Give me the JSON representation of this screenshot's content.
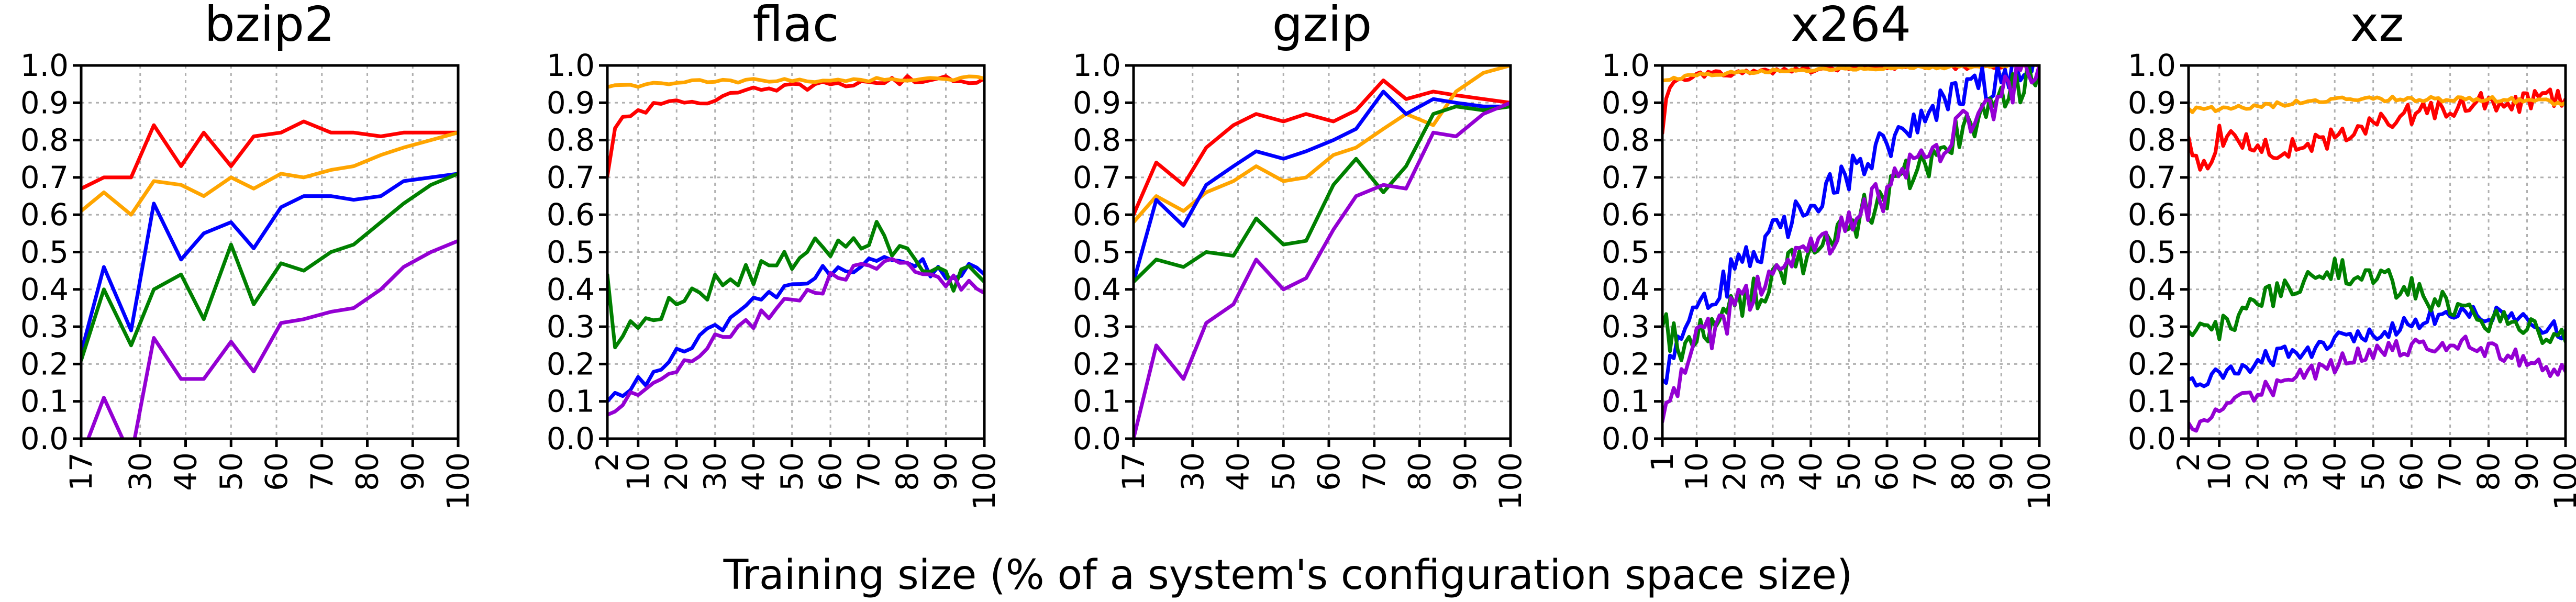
{
  "figure": {
    "xlabel": "Training size (% of a system's configuration space size)"
  },
  "colors": {
    "red": "#ff0000",
    "orange": "#ffa500",
    "blue": "#0000ff",
    "green": "#008000",
    "purple": "#9400d3"
  },
  "chart_data": [
    {
      "type": "line",
      "title": "bzip2",
      "xlabel": "",
      "ylabel": "",
      "xlim": [
        17,
        100
      ],
      "ylim": [
        0.0,
        1.0
      ],
      "xticks": [
        17,
        30,
        40,
        50,
        60,
        70,
        80,
        90,
        100
      ],
      "yticks": [
        "0.0",
        "0.1",
        "0.2",
        "0.3",
        "0.4",
        "0.5",
        "0.6",
        "0.7",
        "0.8",
        "0.9",
        "1.0"
      ],
      "grid": true,
      "x": [
        17,
        22,
        28,
        33,
        39,
        44,
        50,
        55,
        61,
        66,
        72,
        77,
        83,
        88,
        94,
        100
      ],
      "series": [
        {
          "color": "#ff0000",
          "values": [
            0.67,
            0.7,
            0.7,
            0.84,
            0.73,
            0.82,
            0.73,
            0.81,
            0.82,
            0.85,
            0.82,
            0.82,
            0.81,
            0.82,
            0.82,
            0.82
          ]
        },
        {
          "color": "#ffa500",
          "values": [
            0.61,
            0.66,
            0.6,
            0.69,
            0.68,
            0.65,
            0.7,
            0.67,
            0.71,
            0.7,
            0.72,
            0.73,
            0.76,
            0.78,
            0.8,
            0.82
          ]
        },
        {
          "color": "#0000ff",
          "values": [
            0.23,
            0.46,
            0.29,
            0.63,
            0.48,
            0.55,
            0.58,
            0.51,
            0.62,
            0.65,
            0.65,
            0.64,
            0.65,
            0.69,
            0.7,
            0.71
          ]
        },
        {
          "color": "#008000",
          "values": [
            0.21,
            0.4,
            0.25,
            0.4,
            0.44,
            0.32,
            0.52,
            0.36,
            0.47,
            0.45,
            0.5,
            0.52,
            0.58,
            0.63,
            0.68,
            0.71
          ]
        },
        {
          "color": "#9400d3",
          "values": [
            -0.05,
            0.11,
            -0.05,
            0.27,
            0.16,
            0.16,
            0.26,
            0.18,
            0.31,
            0.32,
            0.34,
            0.35,
            0.4,
            0.46,
            0.5,
            0.53
          ]
        }
      ]
    },
    {
      "type": "line",
      "title": "flac",
      "xlabel": "",
      "ylabel": "",
      "xlim": [
        2,
        100
      ],
      "ylim": [
        0.0,
        1.0
      ],
      "xticks": [
        2,
        10,
        20,
        30,
        40,
        50,
        60,
        70,
        80,
        90,
        100
      ],
      "yticks": [
        "0.0",
        "0.1",
        "0.2",
        "0.3",
        "0.4",
        "0.5",
        "0.6",
        "0.7",
        "0.8",
        "0.9",
        "1.0"
      ],
      "grid": true,
      "x_range": [
        2,
        100,
        2
      ],
      "series": [
        {
          "color": "#ff0000",
          "keyframes": [
            [
              2,
              0.7
            ],
            [
              3,
              0.82
            ],
            [
              5,
              0.86
            ],
            [
              10,
              0.88
            ],
            [
              20,
              0.9
            ],
            [
              30,
              0.91
            ],
            [
              40,
              0.93
            ],
            [
              50,
              0.94
            ],
            [
              60,
              0.95
            ],
            [
              70,
              0.955
            ],
            [
              80,
              0.96
            ],
            [
              100,
              0.965
            ]
          ],
          "noise": 0.012
        },
        {
          "color": "#ffa500",
          "keyframes": [
            [
              2,
              0.94
            ],
            [
              20,
              0.955
            ],
            [
              50,
              0.96
            ],
            [
              100,
              0.965
            ]
          ],
          "noise": 0.006
        },
        {
          "color": "#0000ff",
          "keyframes": [
            [
              2,
              0.09
            ],
            [
              5,
              0.12
            ],
            [
              15,
              0.18
            ],
            [
              30,
              0.3
            ],
            [
              45,
              0.38
            ],
            [
              60,
              0.45
            ],
            [
              75,
              0.49
            ],
            [
              85,
              0.46
            ],
            [
              100,
              0.44
            ]
          ],
          "noise": 0.025
        },
        {
          "color": "#008000",
          "keyframes": [
            [
              2,
              0.42
            ],
            [
              4,
              0.24
            ],
            [
              10,
              0.3
            ],
            [
              20,
              0.36
            ],
            [
              30,
              0.42
            ],
            [
              45,
              0.47
            ],
            [
              60,
              0.52
            ],
            [
              72,
              0.55
            ],
            [
              80,
              0.5
            ],
            [
              90,
              0.44
            ],
            [
              100,
              0.42
            ]
          ],
          "noise": 0.04
        },
        {
          "color": "#9400d3",
          "keyframes": [
            [
              2,
              0.05
            ],
            [
              6,
              0.11
            ],
            [
              15,
              0.17
            ],
            [
              30,
              0.26
            ],
            [
              45,
              0.35
            ],
            [
              60,
              0.42
            ],
            [
              75,
              0.47
            ],
            [
              85,
              0.44
            ],
            [
              100,
              0.39
            ]
          ],
          "noise": 0.025
        }
      ]
    },
    {
      "type": "line",
      "title": "gzip",
      "xlabel": "",
      "ylabel": "",
      "xlim": [
        17,
        100
      ],
      "ylim": [
        0.0,
        1.0
      ],
      "xticks": [
        17,
        30,
        40,
        50,
        60,
        70,
        80,
        90,
        100
      ],
      "yticks": [
        "0.0",
        "0.1",
        "0.2",
        "0.3",
        "0.4",
        "0.5",
        "0.6",
        "0.7",
        "0.8",
        "0.9",
        "1.0"
      ],
      "grid": true,
      "x": [
        17,
        22,
        28,
        33,
        39,
        44,
        50,
        55,
        61,
        66,
        72,
        77,
        83,
        88,
        94,
        100
      ],
      "series": [
        {
          "color": "#ff0000",
          "values": [
            0.6,
            0.74,
            0.68,
            0.78,
            0.84,
            0.87,
            0.85,
            0.87,
            0.85,
            0.88,
            0.96,
            0.91,
            0.93,
            0.92,
            0.91,
            0.9
          ]
        },
        {
          "color": "#ffa500",
          "values": [
            0.58,
            0.65,
            0.61,
            0.66,
            0.69,
            0.73,
            0.69,
            0.7,
            0.76,
            0.78,
            0.83,
            0.87,
            0.84,
            0.93,
            0.98,
            1.0
          ]
        },
        {
          "color": "#0000ff",
          "values": [
            0.42,
            0.64,
            0.57,
            0.68,
            0.73,
            0.77,
            0.75,
            0.77,
            0.8,
            0.83,
            0.93,
            0.87,
            0.91,
            0.9,
            0.89,
            0.89
          ]
        },
        {
          "color": "#008000",
          "values": [
            0.42,
            0.48,
            0.46,
            0.5,
            0.49,
            0.59,
            0.52,
            0.53,
            0.68,
            0.75,
            0.66,
            0.73,
            0.87,
            0.89,
            0.88,
            0.89
          ]
        },
        {
          "color": "#9400d3",
          "values": [
            0.0,
            0.25,
            0.16,
            0.31,
            0.36,
            0.48,
            0.4,
            0.43,
            0.56,
            0.65,
            0.68,
            0.67,
            0.82,
            0.81,
            0.87,
            0.9
          ]
        }
      ]
    },
    {
      "type": "line",
      "title": "x264",
      "xlabel": "",
      "ylabel": "",
      "xlim": [
        1,
        100
      ],
      "ylim": [
        0.0,
        1.0
      ],
      "xticks": [
        1,
        10,
        20,
        30,
        40,
        50,
        60,
        70,
        80,
        90,
        100
      ],
      "yticks": [
        "0.0",
        "0.1",
        "0.2",
        "0.3",
        "0.4",
        "0.5",
        "0.6",
        "0.7",
        "0.8",
        "0.9",
        "1.0"
      ],
      "grid": true,
      "x_range": [
        1,
        100,
        1
      ],
      "series": [
        {
          "color": "#ff0000",
          "keyframes": [
            [
              1,
              0.82
            ],
            [
              2,
              0.91
            ],
            [
              4,
              0.96
            ],
            [
              10,
              0.975
            ],
            [
              30,
              0.985
            ],
            [
              60,
              0.995
            ],
            [
              100,
              1.0
            ]
          ],
          "noise": 0.008
        },
        {
          "color": "#ffa500",
          "keyframes": [
            [
              1,
              0.96
            ],
            [
              10,
              0.975
            ],
            [
              30,
              0.985
            ],
            [
              60,
              0.993
            ],
            [
              100,
              1.0
            ]
          ],
          "noise": 0.004
        },
        {
          "color": "#0000ff",
          "keyframes": [
            [
              1,
              0.16
            ],
            [
              5,
              0.25
            ],
            [
              10,
              0.32
            ],
            [
              20,
              0.45
            ],
            [
              30,
              0.55
            ],
            [
              40,
              0.63
            ],
            [
              50,
              0.71
            ],
            [
              60,
              0.79
            ],
            [
              70,
              0.86
            ],
            [
              80,
              0.92
            ],
            [
              90,
              0.97
            ],
            [
              100,
              1.0
            ]
          ],
          "noise": 0.05
        },
        {
          "color": "#008000",
          "keyframes": [
            [
              1,
              0.3
            ],
            [
              5,
              0.25
            ],
            [
              10,
              0.27
            ],
            [
              20,
              0.35
            ],
            [
              30,
              0.43
            ],
            [
              40,
              0.5
            ],
            [
              50,
              0.57
            ],
            [
              60,
              0.66
            ],
            [
              70,
              0.74
            ],
            [
              80,
              0.83
            ],
            [
              90,
              0.9
            ],
            [
              100,
              1.0
            ]
          ],
          "noise": 0.05
        },
        {
          "color": "#9400d3",
          "keyframes": [
            [
              1,
              0.04
            ],
            [
              5,
              0.16
            ],
            [
              10,
              0.25
            ],
            [
              20,
              0.35
            ],
            [
              30,
              0.43
            ],
            [
              40,
              0.5
            ],
            [
              50,
              0.58
            ],
            [
              60,
              0.66
            ],
            [
              70,
              0.75
            ],
            [
              80,
              0.84
            ],
            [
              90,
              0.92
            ],
            [
              100,
              1.0
            ]
          ],
          "noise": 0.05
        }
      ]
    },
    {
      "type": "line",
      "title": "xz",
      "xlabel": "",
      "ylabel": "",
      "xlim": [
        2,
        100
      ],
      "ylim": [
        0.0,
        1.0
      ],
      "xticks": [
        2,
        10,
        20,
        30,
        40,
        50,
        60,
        70,
        80,
        90,
        100
      ],
      "yticks": [
        "0.0",
        "0.1",
        "0.2",
        "0.3",
        "0.4",
        "0.5",
        "0.6",
        "0.7",
        "0.8",
        "0.9",
        "1.0"
      ],
      "grid": true,
      "x_range": [
        2,
        100,
        1
      ],
      "series": [
        {
          "color": "#ff0000",
          "keyframes": [
            [
              2,
              0.79
            ],
            [
              6,
              0.72
            ],
            [
              10,
              0.81
            ],
            [
              20,
              0.78
            ],
            [
              30,
              0.78
            ],
            [
              40,
              0.81
            ],
            [
              50,
              0.84
            ],
            [
              60,
              0.87
            ],
            [
              70,
              0.89
            ],
            [
              80,
              0.9
            ],
            [
              100,
              0.91
            ]
          ],
          "noise": 0.03
        },
        {
          "color": "#ffa500",
          "keyframes": [
            [
              2,
              0.88
            ],
            [
              20,
              0.89
            ],
            [
              40,
              0.91
            ],
            [
              60,
              0.91
            ],
            [
              80,
              0.91
            ],
            [
              100,
              0.9
            ]
          ],
          "noise": 0.007
        },
        {
          "color": "#0000ff",
          "keyframes": [
            [
              2,
              0.14
            ],
            [
              10,
              0.17
            ],
            [
              20,
              0.21
            ],
            [
              30,
              0.23
            ],
            [
              40,
              0.26
            ],
            [
              50,
              0.28
            ],
            [
              60,
              0.31
            ],
            [
              70,
              0.34
            ],
            [
              80,
              0.33
            ],
            [
              90,
              0.32
            ],
            [
              100,
              0.29
            ]
          ],
          "noise": 0.025
        },
        {
          "color": "#008000",
          "keyframes": [
            [
              2,
              0.26
            ],
            [
              10,
              0.3
            ],
            [
              20,
              0.36
            ],
            [
              30,
              0.42
            ],
            [
              38,
              0.46
            ],
            [
              50,
              0.43
            ],
            [
              60,
              0.4
            ],
            [
              70,
              0.35
            ],
            [
              80,
              0.32
            ],
            [
              90,
              0.3
            ],
            [
              100,
              0.26
            ]
          ],
          "noise": 0.035
        },
        {
          "color": "#9400d3",
          "keyframes": [
            [
              2,
              0.02
            ],
            [
              6,
              0.05
            ],
            [
              10,
              0.08
            ],
            [
              20,
              0.12
            ],
            [
              30,
              0.16
            ],
            [
              40,
              0.2
            ],
            [
              50,
              0.23
            ],
            [
              60,
              0.25
            ],
            [
              70,
              0.26
            ],
            [
              80,
              0.24
            ],
            [
              90,
              0.21
            ],
            [
              100,
              0.18
            ]
          ],
          "noise": 0.025
        }
      ]
    }
  ]
}
